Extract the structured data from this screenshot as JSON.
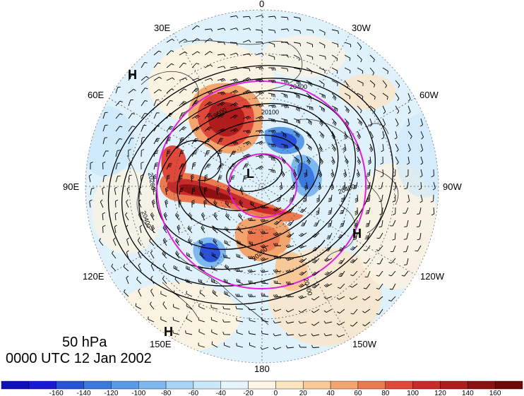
{
  "title": {
    "level": "50 hPa",
    "time": "0000 UTC 12 Jan 2002"
  },
  "longitude_labels": [
    {
      "text": "0"
    },
    {
      "text": "30W"
    },
    {
      "text": "60W"
    },
    {
      "text": "90W"
    },
    {
      "text": "120W"
    },
    {
      "text": "150W"
    },
    {
      "text": "180"
    },
    {
      "text": "150E"
    },
    {
      "text": "120E"
    },
    {
      "text": "90E"
    },
    {
      "text": "60E"
    },
    {
      "text": "30E"
    }
  ],
  "pressure_centers": [
    {
      "text": "H"
    },
    {
      "text": "L"
    },
    {
      "text": "H"
    },
    {
      "text": "H"
    }
  ],
  "contour_labels": [
    "20400",
    "20100",
    "20260",
    "20400",
    "19600",
    "20400",
    "20260",
    "20400"
  ],
  "colorbar": {
    "ticks": [
      "-160",
      "-140",
      "-120",
      "-100",
      "-80",
      "-60",
      "-40",
      "-20",
      "0",
      "20",
      "40",
      "60",
      "80",
      "100",
      "120",
      "140",
      "160"
    ],
    "colors": [
      "#1a1ad4",
      "#2a52d8",
      "#3a7ae0",
      "#5b9ae8",
      "#7fb8ef",
      "#a8d4f5",
      "#cbe8fa",
      "#e6f5fd",
      "#fdf6e4",
      "#fbe4c0",
      "#f8c896",
      "#f3a56e",
      "#ec7a4e",
      "#e0483a",
      "#c92a2a",
      "#b01c1c",
      "#8e1010"
    ]
  },
  "colors": {
    "magenta": "#e020e0",
    "contour": "#000000",
    "warm_strong": "#c01e1e",
    "cool_strong": "#2a5ad8"
  }
}
